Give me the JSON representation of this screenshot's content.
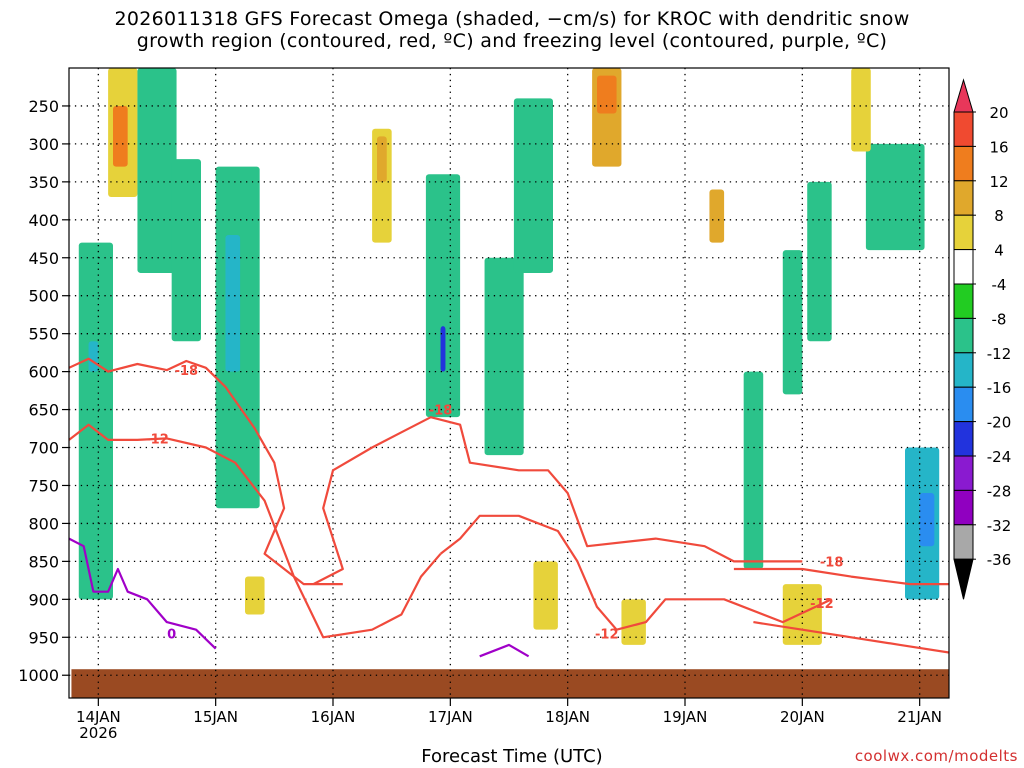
{
  "title": {
    "line1": "2026011318 GFS Forecast Omega (shaded, −cm/s) for KROC with dendritic snow",
    "line2": "growth region (contoured, red, ºC) and freezing level (contoured, purple, ºC)"
  },
  "xlabel": "Forecast Time (UTC)",
  "credit": "coolwx.com/modelts",
  "colors": {
    "ground": "#9a4a22",
    "dgz_contour": "#f04a3c",
    "freezing_contour": "#a000c8",
    "grid": "#000000"
  },
  "chart_data": {
    "type": "heatmap",
    "description_units": "Omega (-cm/s) time-height cross section",
    "y_axis": {
      "labels": [
        "250",
        "300",
        "350",
        "400",
        "450",
        "500",
        "550",
        "600",
        "650",
        "700",
        "750",
        "800",
        "850",
        "900",
        "950",
        "1000"
      ],
      "values": [
        250,
        300,
        350,
        400,
        450,
        500,
        550,
        600,
        650,
        700,
        750,
        800,
        850,
        900,
        950,
        1000
      ],
      "range": [
        200,
        1030
      ],
      "inverted": true
    },
    "x_axis": {
      "ticks": [
        "14JAN",
        "15JAN",
        "16JAN",
        "17JAN",
        "18JAN",
        "19JAN",
        "20JAN",
        "21JAN"
      ],
      "tick_hours": [
        6,
        30,
        54,
        78,
        102,
        126,
        150,
        174
      ],
      "sublabel": "2026",
      "range_hours": [
        0,
        180
      ]
    },
    "grid": true,
    "colorbar": {
      "labels": [
        "20",
        "16",
        "12",
        "8",
        "4",
        "-4",
        "-8",
        "-12",
        "-16",
        "-20",
        "-24",
        "-28",
        "-32",
        "-36"
      ],
      "colors": [
        "#e8375a",
        "#f04a30",
        "#ef7d1e",
        "#e0a82c",
        "#e6d23a",
        "#ffffff",
        "#22cc22",
        "#2bc28a",
        "#25b5c8",
        "#2a8df0",
        "#2233dd",
        "#8a1ad0",
        "#9000c0",
        "#a8a8a8",
        "#000000"
      ]
    },
    "omega_features": [
      {
        "t0": 2,
        "t1": 9,
        "p0": 430,
        "p1": 900,
        "v": -8
      },
      {
        "t0": 4,
        "t1": 6,
        "p0": 560,
        "p1": 600,
        "v": -12
      },
      {
        "t0": 8,
        "t1": 14,
        "p0": 200,
        "p1": 370,
        "v": 4
      },
      {
        "t0": 9,
        "t1": 12,
        "p0": 250,
        "p1": 330,
        "v": 12
      },
      {
        "t0": 14,
        "t1": 22,
        "p0": 200,
        "p1": 470,
        "v": -8
      },
      {
        "t0": 21,
        "t1": 27,
        "p0": 320,
        "p1": 560,
        "v": -8
      },
      {
        "t0": 30,
        "t1": 39,
        "p0": 330,
        "p1": 780,
        "v": -8
      },
      {
        "t0": 32,
        "t1": 35,
        "p0": 420,
        "p1": 600,
        "v": -12
      },
      {
        "t0": 62,
        "t1": 66,
        "p0": 280,
        "p1": 430,
        "v": 4
      },
      {
        "t0": 63,
        "t1": 65,
        "p0": 290,
        "p1": 350,
        "v": 8
      },
      {
        "t0": 73,
        "t1": 80,
        "p0": 340,
        "p1": 660,
        "v": -8
      },
      {
        "t0": 76,
        "t1": 77,
        "p0": 540,
        "p1": 600,
        "v": -20
      },
      {
        "t0": 85,
        "t1": 93,
        "p0": 450,
        "p1": 710,
        "v": -8
      },
      {
        "t0": 91,
        "t1": 99,
        "p0": 240,
        "p1": 470,
        "v": -8
      },
      {
        "t0": 107,
        "t1": 113,
        "p0": 200,
        "p1": 330,
        "v": 8
      },
      {
        "t0": 108,
        "t1": 112,
        "p0": 210,
        "p1": 260,
        "v": 12
      },
      {
        "t0": 131,
        "t1": 134,
        "p0": 360,
        "p1": 430,
        "v": 8
      },
      {
        "t0": 138,
        "t1": 142,
        "p0": 600,
        "p1": 860,
        "v": -8
      },
      {
        "t0": 146,
        "t1": 150,
        "p0": 440,
        "p1": 630,
        "v": -8
      },
      {
        "t0": 151,
        "t1": 156,
        "p0": 350,
        "p1": 560,
        "v": -8
      },
      {
        "t0": 163,
        "t1": 175,
        "p0": 300,
        "p1": 440,
        "v": -8
      },
      {
        "t0": 171,
        "t1": 178,
        "p0": 700,
        "p1": 900,
        "v": -12
      },
      {
        "t0": 174,
        "t1": 177,
        "p0": 760,
        "p1": 830,
        "v": -16
      },
      {
        "t0": 36,
        "t1": 40,
        "p0": 870,
        "p1": 920,
        "v": 4
      },
      {
        "t0": 95,
        "t1": 100,
        "p0": 850,
        "p1": 940,
        "v": 4
      },
      {
        "t0": 113,
        "t1": 118,
        "p0": 900,
        "p1": 960,
        "v": 4
      },
      {
        "t0": 146,
        "t1": 154,
        "p0": 880,
        "p1": 960,
        "v": 4
      },
      {
        "t0": 160,
        "t1": 164,
        "p0": 200,
        "p1": 310,
        "v": 4
      }
    ],
    "dgz_contours": [
      {
        "label": "-18",
        "label_at": [
          24,
          598
        ],
        "points": [
          [
            0,
            595
          ],
          [
            4,
            583
          ],
          [
            8,
            600
          ],
          [
            14,
            590
          ],
          [
            20,
            598
          ],
          [
            24,
            586
          ],
          [
            28,
            595
          ],
          [
            32,
            620
          ],
          [
            38,
            675
          ],
          [
            42,
            720
          ],
          [
            44,
            780
          ],
          [
            40,
            840
          ],
          [
            48,
            880
          ],
          [
            56,
            880
          ]
        ]
      },
      {
        "label": "-12",
        "label_at": [
          18,
          688
        ],
        "points": [
          [
            0,
            690
          ],
          [
            4,
            670
          ],
          [
            8,
            690
          ],
          [
            14,
            690
          ],
          [
            20,
            688
          ],
          [
            28,
            700
          ],
          [
            34,
            720
          ],
          [
            40,
            770
          ],
          [
            46,
            870
          ],
          [
            52,
            950
          ],
          [
            62,
            940
          ],
          [
            68,
            920
          ],
          [
            72,
            870
          ],
          [
            76,
            840
          ]
        ]
      },
      {
        "label": "-18",
        "label_at": [
          76,
          650
        ],
        "points": [
          [
            50,
            880
          ],
          [
            56,
            860
          ],
          [
            52,
            780
          ],
          [
            54,
            730
          ],
          [
            62,
            700
          ],
          [
            68,
            680
          ],
          [
            74,
            660
          ],
          [
            80,
            670
          ],
          [
            82,
            720
          ],
          [
            92,
            730
          ],
          [
            98,
            730
          ],
          [
            102,
            760
          ],
          [
            106,
            830
          ],
          [
            120,
            820
          ],
          [
            130,
            830
          ],
          [
            136,
            850
          ],
          [
            150,
            850
          ]
        ]
      },
      {
        "label": "-12",
        "label_at": [
          110,
          945
        ],
        "points": [
          [
            76,
            840
          ],
          [
            80,
            820
          ],
          [
            84,
            790
          ],
          [
            92,
            790
          ],
          [
            100,
            810
          ],
          [
            104,
            850
          ],
          [
            108,
            910
          ],
          [
            112,
            940
          ],
          [
            118,
            930
          ],
          [
            122,
            900
          ],
          [
            134,
            900
          ],
          [
            146,
            930
          ],
          [
            156,
            900
          ]
        ]
      },
      {
        "label": "-18",
        "label_at": [
          156,
          850
        ],
        "points": [
          [
            136,
            860
          ],
          [
            150,
            860
          ],
          [
            160,
            870
          ],
          [
            172,
            880
          ],
          [
            180,
            880
          ]
        ]
      },
      {
        "label": "-12",
        "label_at": [
          154,
          905
        ],
        "points": [
          [
            140,
            930
          ],
          [
            150,
            940
          ],
          [
            160,
            950
          ],
          [
            170,
            960
          ],
          [
            180,
            970
          ]
        ]
      }
    ],
    "freezing_contours": [
      {
        "label": "0",
        "label_at": [
          21,
          945
        ],
        "points": [
          [
            0,
            820
          ],
          [
            3,
            830
          ],
          [
            5,
            890
          ],
          [
            8,
            890
          ],
          [
            10,
            860
          ],
          [
            12,
            890
          ],
          [
            16,
            900
          ],
          [
            20,
            930
          ],
          [
            26,
            940
          ],
          [
            30,
            965
          ]
        ]
      },
      {
        "label": "",
        "label_at": null,
        "points": [
          [
            84,
            975
          ],
          [
            90,
            960
          ],
          [
            94,
            975
          ]
        ]
      }
    ]
  }
}
